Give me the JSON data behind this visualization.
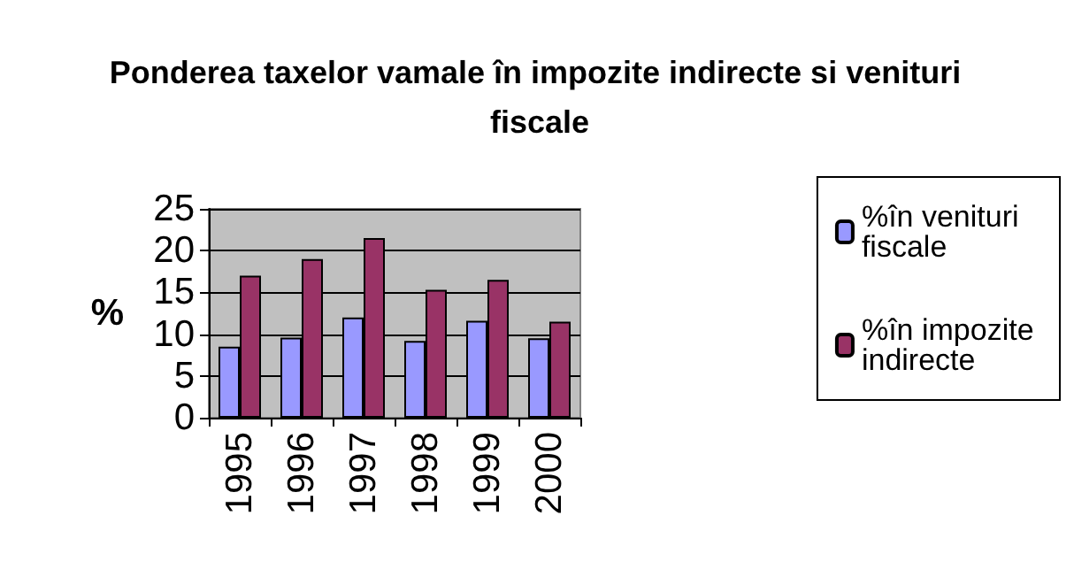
{
  "chart_data": {
    "type": "bar",
    "title": "Ponderea taxelor vamale în impozite indirecte si venituri fiscale",
    "ylabel": "%",
    "categories": [
      "1995",
      "1996",
      "1997",
      "1998",
      "1999",
      "2000"
    ],
    "series": [
      {
        "name": "%în venituri fiscale",
        "color": "#9999ff",
        "values": [
          8.5,
          9.6,
          12,
          9.2,
          11.6,
          9.5
        ]
      },
      {
        "name": "%în impozite indirecte",
        "color": "#993366",
        "values": [
          17,
          19,
          21.5,
          15.3,
          16.5,
          11.5
        ]
      }
    ],
    "ylim": [
      0,
      25
    ],
    "yticks": [
      0,
      5,
      10,
      15,
      20,
      25
    ],
    "grid": "y",
    "legend": "right"
  }
}
